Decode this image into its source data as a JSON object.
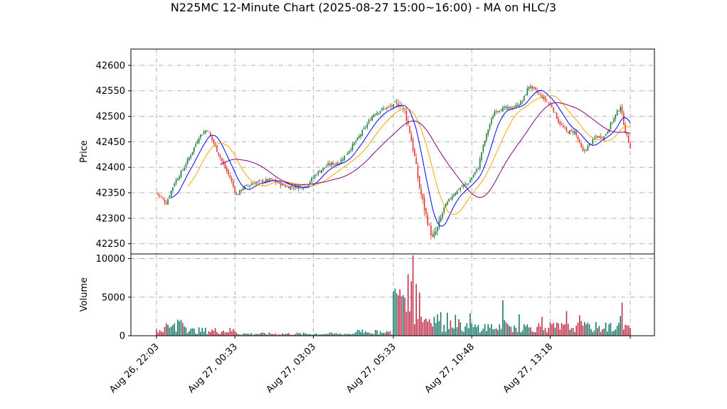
{
  "chart_data": {
    "type": "candlestick",
    "title": "N225MC 12-Minute Chart (2025-08-27 15:00~16:00) - MA on HLC/3",
    "grid": true,
    "grid_style": "dash-dot",
    "colors": {
      "up": "#1a7a3a",
      "down": "#e03a2f",
      "vol_up": "#1a7a6a",
      "vol_down": "#c0304a",
      "ma_fast": "#0000ff",
      "ma_mid": "#ffa500",
      "ma_slow": "#800080"
    },
    "price_panel": {
      "ylabel": "Price",
      "ylim": [
        42230,
        42632
      ],
      "yticks": [
        42250,
        42300,
        42350,
        42400,
        42450,
        42500,
        42550,
        42600
      ],
      "close_anchors": [
        [
          0,
          42350
        ],
        [
          6,
          42330
        ],
        [
          11,
          42370
        ],
        [
          16,
          42395
        ],
        [
          21,
          42425
        ],
        [
          26,
          42460
        ],
        [
          31,
          42475
        ],
        [
          36,
          42440
        ],
        [
          41,
          42405
        ],
        [
          45,
          42380
        ],
        [
          49,
          42345
        ],
        [
          53,
          42360
        ],
        [
          60,
          42370
        ],
        [
          70,
          42375
        ],
        [
          80,
          42362
        ],
        [
          91,
          42362
        ],
        [
          98,
          42388
        ],
        [
          105,
          42405
        ],
        [
          112,
          42410
        ],
        [
          117,
          42430
        ],
        [
          123,
          42455
        ],
        [
          128,
          42480
        ],
        [
          133,
          42505
        ],
        [
          139,
          42515
        ],
        [
          144,
          42520
        ],
        [
          149,
          42525
        ],
        [
          152,
          42510
        ],
        [
          155,
          42470
        ],
        [
          158,
          42420
        ],
        [
          161,
          42360
        ],
        [
          165,
          42305
        ],
        [
          169,
          42260
        ],
        [
          172,
          42280
        ],
        [
          176,
          42320
        ],
        [
          181,
          42345
        ],
        [
          186,
          42360
        ],
        [
          191,
          42370
        ],
        [
          194,
          42385
        ],
        [
          197,
          42400
        ],
        [
          199,
          42430
        ],
        [
          203,
          42475
        ],
        [
          207,
          42510
        ],
        [
          211,
          42515
        ],
        [
          215,
          42515
        ],
        [
          220,
          42520
        ],
        [
          224,
          42530
        ],
        [
          228,
          42560
        ],
        [
          232,
          42550
        ],
        [
          237,
          42535
        ],
        [
          242,
          42520
        ],
        [
          246,
          42490
        ],
        [
          251,
          42470
        ],
        [
          256,
          42470
        ],
        [
          261,
          42430
        ],
        [
          264,
          42440
        ],
        [
          269,
          42460
        ],
        [
          274,
          42460
        ],
        [
          279,
          42490
        ],
        [
          284,
          42520
        ],
        [
          287,
          42470
        ],
        [
          290,
          42440
        ]
      ]
    },
    "volume_panel": {
      "ylabel": "Volume",
      "ylim": [
        0,
        10600
      ],
      "yticks": [
        0,
        5000,
        10000
      ]
    },
    "x_ticks": [
      {
        "label": "Aug 26, 22:03",
        "index": 0
      },
      {
        "label": "Aug 27, 00:33",
        "index": 48
      },
      {
        "label": "Aug 27, 03:03",
        "index": 96
      },
      {
        "label": "Aug 27, 05:33",
        "index": 145
      },
      {
        "label": "Aug 27, 10:48",
        "index": 193
      },
      {
        "label": "Aug 27, 13:18",
        "index": 241
      },
      {
        "label": "",
        "index": 290
      }
    ],
    "bar_count": 291
  }
}
